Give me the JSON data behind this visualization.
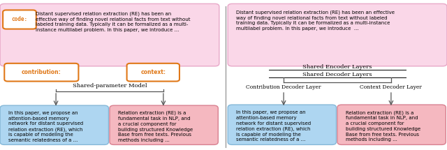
{
  "abstract_text_left": "Distant supervised relation extraction (RE) has been an\neffective way of finding novel relational facts from text without\nlabeled training data. Typically it can be formalized as a multi-\ninstance multilabel problem. In this paper, we introduce ...",
  "abstract_text_right": "Distant supervised relation extraction (RE) has been an effective\nway of finding novel relational facts from text without labeled\ntraining data. Typically it can be formalized as a multi-instance\nmultilabel problem. In this paper, we introduce  ...",
  "abstract_bg": "#fad7e8",
  "abstract_border": "#e8a8c8",
  "contribution_label": "contribution:",
  "context_label": "context:",
  "label_color": "#e07818",
  "shared_model_text": "Shared-parameter Model",
  "shared_encoder_text": "Shared Encoder Layers",
  "shared_decoder_text": "Shared Decoder Layers",
  "contrib_decoder_text": "Contribution Decoder Layer",
  "context_decoder_text": "Context Decoder Layer",
  "blue_box_text": "In this paper, we propose an\nattention-based memory\nnetwork for distant supervised\nrelation extraction (RE), which\nis capable of modeling the\nsemantic relatedness of a ...",
  "pink_box_text": "Relation extraction (RE) is a\nfundamental task in NLP, and\na crucial component for\nbuilding structured Knowledge\nBase from free texts. Previous\nmethods including ...",
  "blue_bg": "#aed6f1",
  "blue_border": "#85b8d8",
  "pink_bg": "#f5b8c0",
  "pink_border": "#d88090",
  "code_label": "code:",
  "arrow_color": "#555555",
  "divider_color": "#888888",
  "fig_width": 6.4,
  "fig_height": 2.15,
  "dpi": 100
}
